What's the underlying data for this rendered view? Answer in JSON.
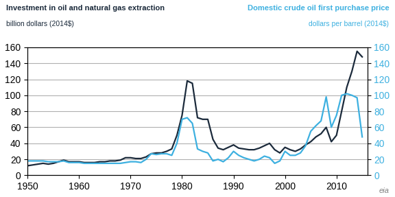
{
  "chart_data": {
    "type": "line",
    "title": "Investment in oil and natural gas extraction",
    "subtitle": "billion dollars (2014$)",
    "y2_title": "Domestic crude oil first purchase price",
    "y2_subtitle": "dollars per barrel (2014$)",
    "annotations": [
      "eia"
    ],
    "x": [
      1950,
      1951,
      1952,
      1953,
      1954,
      1955,
      1956,
      1957,
      1958,
      1959,
      1960,
      1961,
      1962,
      1963,
      1964,
      1965,
      1966,
      1967,
      1968,
      1969,
      1970,
      1971,
      1972,
      1973,
      1974,
      1975,
      1976,
      1977,
      1978,
      1979,
      1980,
      1981,
      1982,
      1983,
      1984,
      1985,
      1986,
      1987,
      1988,
      1989,
      1990,
      1991,
      1992,
      1993,
      1994,
      1995,
      1996,
      1997,
      1998,
      1999,
      2000,
      2001,
      2002,
      2003,
      2004,
      2005,
      2006,
      2007,
      2008,
      2009,
      2010,
      2011,
      2012,
      2013,
      2014,
      2015
    ],
    "series": [
      {
        "color": "#1b2a3b",
        "values": [
          12,
          13,
          14,
          15,
          14,
          15,
          17,
          19,
          17,
          17,
          17,
          16,
          16,
          16,
          17,
          17,
          18,
          18,
          19,
          22,
          22,
          21,
          21,
          23,
          27,
          28,
          28,
          30,
          33,
          50,
          75,
          118,
          115,
          72,
          70,
          70,
          45,
          34,
          32,
          35,
          38,
          34,
          33,
          32,
          32,
          34,
          37,
          40,
          32,
          28,
          35,
          32,
          30,
          33,
          38,
          42,
          48,
          52,
          60,
          42,
          50,
          80,
          110,
          130,
          155,
          148
        ]
      },
      {
        "color": "#3db0e0",
        "axis": "y2",
        "values": [
          18,
          18,
          18,
          18,
          17,
          17,
          17,
          18,
          16,
          16,
          16,
          15,
          15,
          15,
          15,
          15,
          15,
          15,
          15,
          16,
          17,
          17,
          16,
          20,
          27,
          26,
          27,
          27,
          25,
          40,
          70,
          72,
          65,
          33,
          30,
          28,
          18,
          20,
          17,
          22,
          30,
          25,
          22,
          20,
          18,
          20,
          24,
          22,
          15,
          18,
          30,
          25,
          25,
          28,
          37,
          55,
          62,
          68,
          98,
          60,
          75,
          100,
          102,
          100,
          97,
          48
        ]
      }
    ],
    "xlim": [
      1950,
      2016
    ],
    "xticks": [
      1950,
      1960,
      1970,
      1980,
      1990,
      2000,
      2010
    ],
    "ylim": [
      0,
      160
    ],
    "yticks": [
      0,
      20,
      40,
      60,
      80,
      100,
      120,
      140,
      160
    ],
    "y2lim": [
      0,
      160
    ],
    "y2ticks": [
      0,
      20,
      40,
      60,
      80,
      100,
      120,
      140,
      160
    ],
    "grid": "y"
  }
}
